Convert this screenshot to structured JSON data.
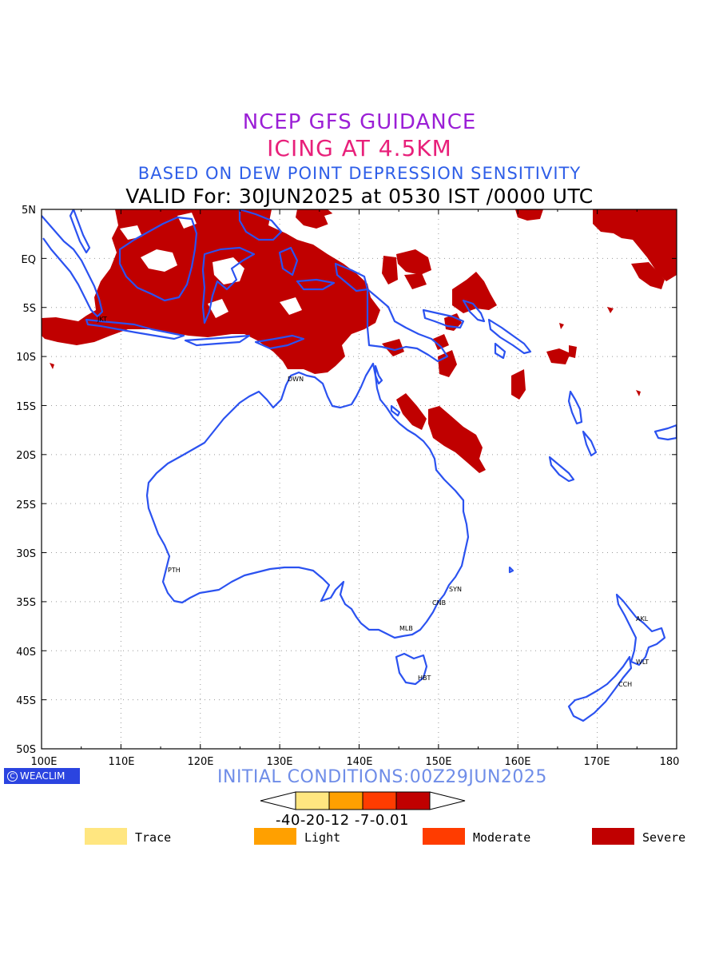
{
  "titles": {
    "line1": "NCEP GFS GUIDANCE",
    "line2": "ICING AT 4.5KM",
    "line3": "BASED ON DEW POINT DEPRESSION SENSITIVITY",
    "line4": "VALID For: 30JUN2025 at 0530 IST /0000 UTC"
  },
  "map": {
    "lon_range": [
      100,
      180
    ],
    "lat_range": [
      -50,
      5
    ],
    "grid": true,
    "lat_labels": [
      "5N",
      "EQ",
      "5S",
      "10S",
      "15S",
      "20S",
      "25S",
      "30S",
      "35S",
      "40S",
      "45S",
      "50S"
    ],
    "lon_labels": [
      "100E",
      "110E",
      "120E",
      "130E",
      "140E",
      "150E",
      "160E",
      "170E",
      "180"
    ],
    "coastline_color": "#2b52f0",
    "severe_color": "#c00000",
    "cities": [
      {
        "code": "JKT",
        "lon": 106.8,
        "lat": -6.2
      },
      {
        "code": "DWN",
        "lon": 130.8,
        "lat": -12.4
      },
      {
        "code": "PTH",
        "lon": 115.9,
        "lat": -31.9
      },
      {
        "code": "SYN",
        "lon": 151.2,
        "lat": -33.9
      },
      {
        "code": "CNB",
        "lon": 149.1,
        "lat": -35.3
      },
      {
        "code": "MLB",
        "lon": 144.9,
        "lat": -37.8
      },
      {
        "code": "HBT",
        "lon": 147.3,
        "lat": -42.9
      },
      {
        "code": "AKL",
        "lon": 174.8,
        "lat": -36.8
      },
      {
        "code": "WLT",
        "lon": 174.8,
        "lat": -41.3
      },
      {
        "code": "CCH",
        "lon": 172.6,
        "lat": -43.5
      }
    ]
  },
  "footer": {
    "logo_text": "WEACLIM",
    "logo_symbol": "C",
    "initial_conditions": "INITIAL CONDITIONS:00Z29JUN2025"
  },
  "colorbar": {
    "tick_text": "-40-20-12 -7-0.01",
    "colors": [
      "#ffe680",
      "#ffa000",
      "#ff3c00",
      "#c00000"
    ]
  },
  "legend": [
    {
      "label": "Trace",
      "color": "#ffe680"
    },
    {
      "label": "Light",
      "color": "#ffa000"
    },
    {
      "label": "Moderate",
      "color": "#ff3c00"
    },
    {
      "label": "Severe",
      "color": "#c00000"
    }
  ]
}
